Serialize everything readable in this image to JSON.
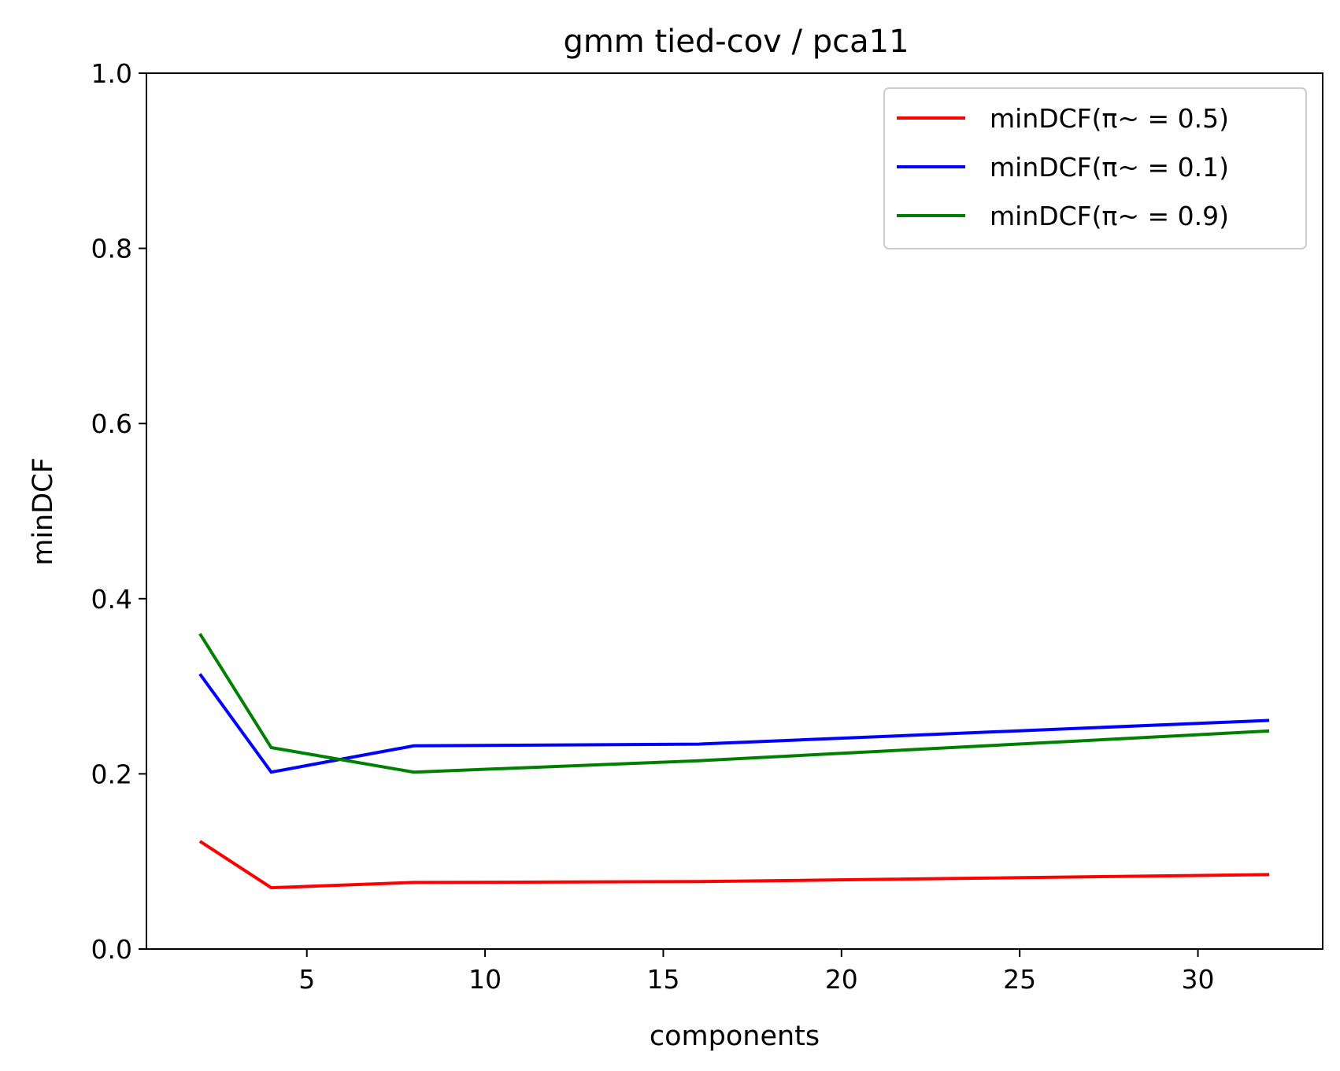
{
  "chart_data": {
    "type": "line",
    "title": "gmm tied-cov / pca11",
    "xlabel": "components",
    "ylabel": "minDCF",
    "x": [
      2,
      4,
      8,
      16,
      32
    ],
    "xlim": [
      0.5,
      33.5
    ],
    "ylim": [
      0,
      1
    ],
    "xticks": [
      5,
      10,
      15,
      20,
      25,
      30
    ],
    "yticks": [
      "0.0",
      "0.2",
      "0.4",
      "0.6",
      "0.8",
      "1.0"
    ],
    "grid": false,
    "legend_position": "top-right",
    "series": [
      {
        "name": "minDCF(π~ = 0.5)",
        "color": "#ff0000",
        "values": [
          0.123,
          0.07,
          0.076,
          0.077,
          0.085
        ]
      },
      {
        "name": "minDCF(π~ = 0.1)",
        "color": "#0000ff",
        "values": [
          0.314,
          0.202,
          0.232,
          0.234,
          0.261
        ]
      },
      {
        "name": "minDCF(π~ = 0.9)",
        "color": "#008000",
        "values": [
          0.36,
          0.23,
          0.202,
          0.215,
          0.249
        ]
      }
    ]
  }
}
